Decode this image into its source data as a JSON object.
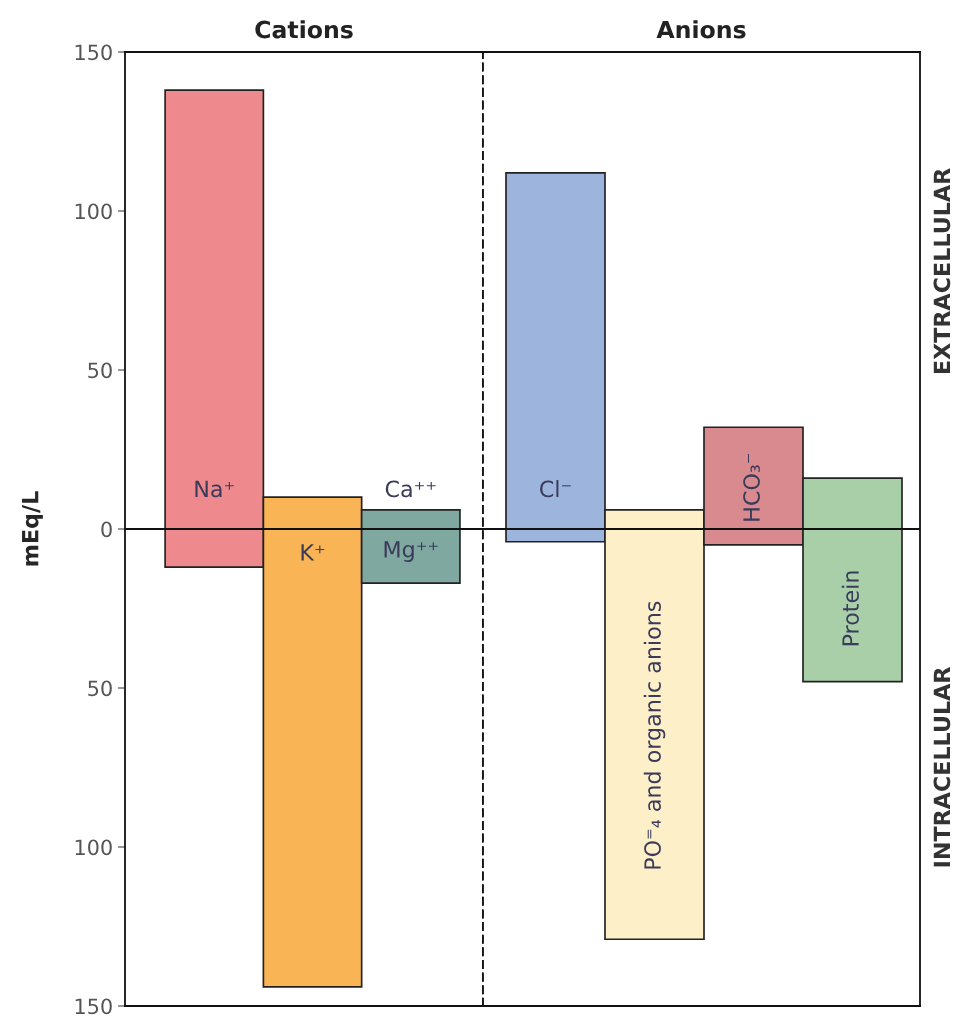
{
  "chart_data": [
    {
      "type": "bar",
      "title": "Cations",
      "ylabel": "mEq/L",
      "categories": [
        "Na⁺",
        "K⁺",
        "Ca⁺⁺"
      ],
      "values": [
        150,
        154,
        23
      ],
      "base": [
        -12,
        -144,
        -17
      ],
      "colors": [
        "#ee8a8e",
        "#f8b455",
        "#7fa9a0"
      ],
      "annotations": [
        "Mg⁺⁺"
      ],
      "ylim": [
        -150,
        150
      ],
      "yticks": [
        {
          "value": -150,
          "label": "150"
        },
        {
          "value": -100,
          "label": "100"
        },
        {
          "value": -50,
          "label": "50"
        },
        0,
        50,
        100,
        150
      ],
      "ref_lines": [
        {
          "axis": "y",
          "value": 0
        }
      ],
      "tick_labels": "y",
      "grid": false,
      "legend": false
    },
    {
      "type": "bar",
      "title": "Anions",
      "categories": [
        "Cl⁻",
        "PO⁼₄ and organic anions",
        "HCO₃⁻",
        "Protein"
      ],
      "values": [
        116,
        135,
        37,
        64
      ],
      "base": [
        -4,
        -129,
        -5,
        -48
      ],
      "colors": [
        "#9db5dc",
        "#fdf0c8",
        "#d98a8f",
        "#a9cfa9"
      ],
      "annotations": [
        "EXTRACELLULAR",
        "INTRACELLULAR"
      ],
      "ylim": [
        -150,
        150
      ],
      "ref_lines": [
        {
          "axis": "y",
          "value": 0
        }
      ],
      "tick_labels": false,
      "grid": false,
      "legend": false
    }
  ]
}
